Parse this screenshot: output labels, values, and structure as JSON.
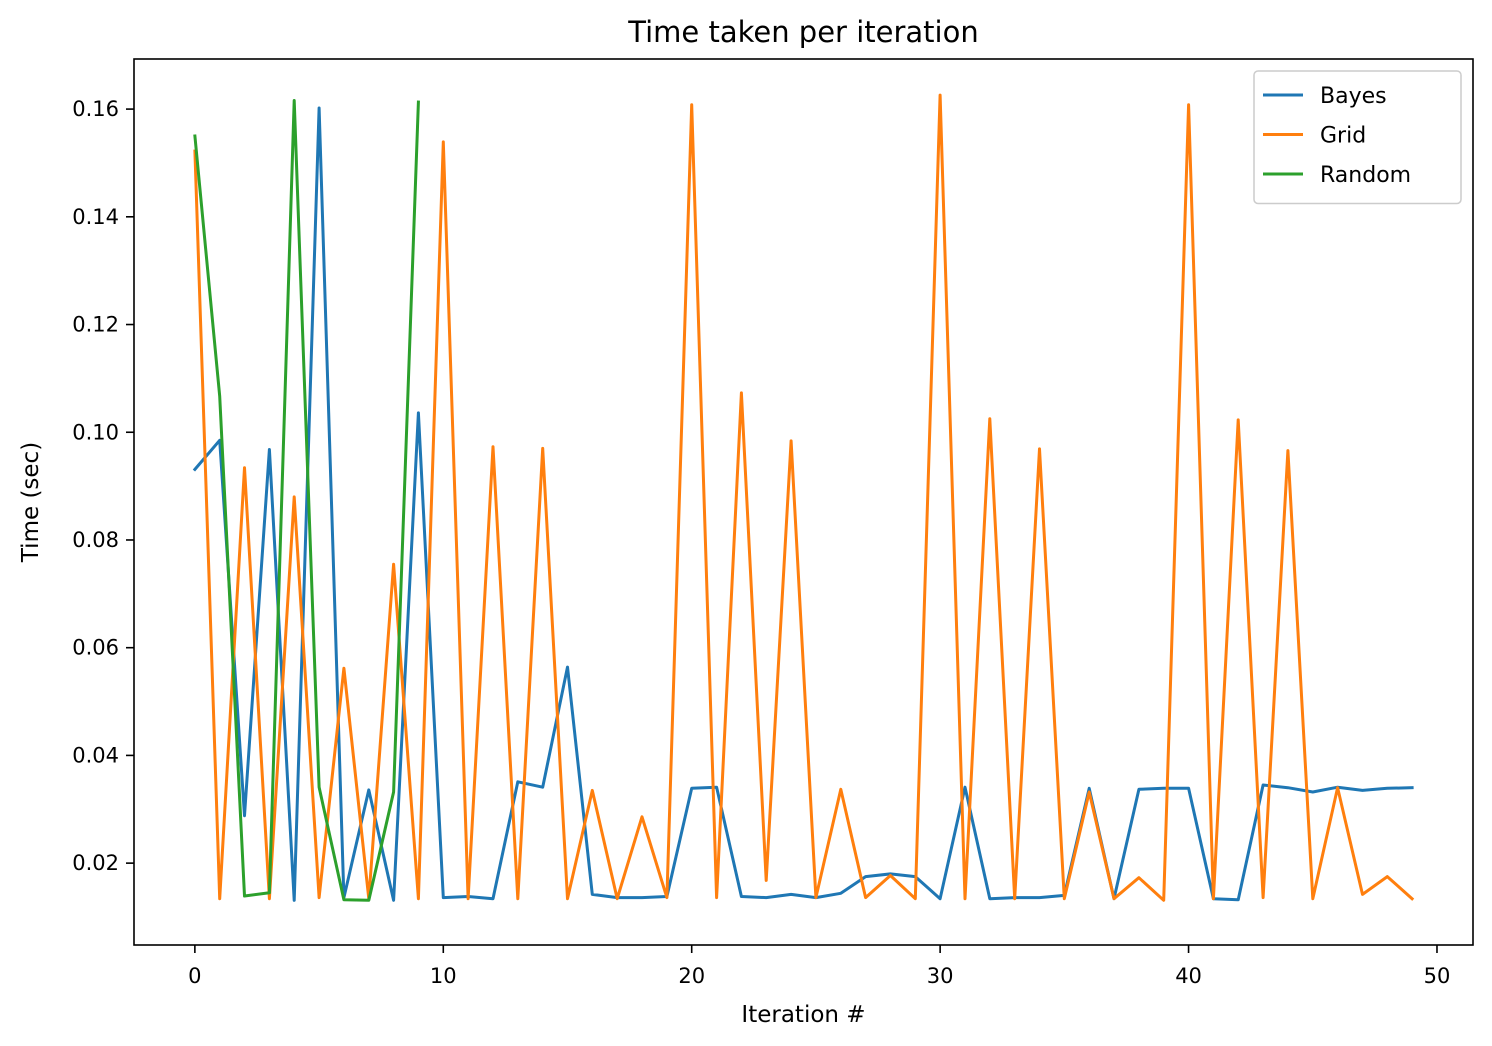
{
  "chart_data": {
    "type": "line",
    "title": "Time taken per iteration",
    "xlabel": "Iteration #",
    "ylabel": "Time (sec)",
    "xlim": [
      -2.45,
      51.45
    ],
    "ylim": [
      0.0048,
      0.1693
    ],
    "xticks": [
      0,
      10,
      20,
      30,
      40,
      50
    ],
    "yticks": [
      0.02,
      0.04,
      0.06,
      0.08,
      0.1,
      0.12,
      0.14,
      0.16
    ],
    "ytick_labels": [
      "0.02",
      "0.04",
      "0.06",
      "0.08",
      "0.10",
      "0.12",
      "0.14",
      "0.16"
    ],
    "grid": false,
    "legend_position": "top-right",
    "series": [
      {
        "name": "Bayes",
        "color": "#1f77b4",
        "x": [
          0,
          1,
          2,
          3,
          4,
          5,
          6,
          7,
          8,
          9,
          10,
          11,
          12,
          13,
          14,
          15,
          16,
          17,
          18,
          19,
          20,
          21,
          22,
          23,
          24,
          25,
          26,
          27,
          28,
          29,
          30,
          31,
          32,
          33,
          34,
          35,
          36,
          37,
          38,
          39,
          40,
          41,
          42,
          43,
          44,
          45,
          46,
          47,
          48,
          49
        ],
        "values": [
          0.0931,
          0.0985,
          0.0288,
          0.0968,
          0.0131,
          0.1602,
          0.0136,
          0.0336,
          0.0131,
          0.1036,
          0.0136,
          0.0138,
          0.0134,
          0.0351,
          0.0341,
          0.0564,
          0.0142,
          0.0136,
          0.0136,
          0.0138,
          0.0339,
          0.0341,
          0.0138,
          0.0136,
          0.0142,
          0.0136,
          0.0144,
          0.0175,
          0.018,
          0.0175,
          0.0134,
          0.0341,
          0.0134,
          0.0136,
          0.0136,
          0.014,
          0.0339,
          0.0134,
          0.0337,
          0.0339,
          0.0339,
          0.0134,
          0.0132,
          0.0345,
          0.034,
          0.0332,
          0.0341,
          0.0335,
          0.0339,
          0.034
        ]
      },
      {
        "name": "Grid",
        "color": "#ff7f0e",
        "x": [
          0,
          1,
          2,
          3,
          4,
          5,
          6,
          7,
          8,
          9,
          10,
          11,
          12,
          13,
          14,
          15,
          16,
          17,
          18,
          19,
          20,
          21,
          22,
          23,
          24,
          25,
          26,
          27,
          28,
          29,
          30,
          31,
          32,
          33,
          34,
          35,
          36,
          37,
          38,
          39,
          40,
          41,
          42,
          43,
          44,
          45,
          46,
          47,
          48,
          49
        ],
        "values": [
          0.1522,
          0.0134,
          0.0934,
          0.0134,
          0.088,
          0.0136,
          0.0562,
          0.0134,
          0.0755,
          0.0134,
          0.1539,
          0.0134,
          0.0973,
          0.0134,
          0.097,
          0.0134,
          0.0335,
          0.0134,
          0.0286,
          0.0136,
          0.1608,
          0.0136,
          0.1073,
          0.0168,
          0.0984,
          0.0136,
          0.0337,
          0.0136,
          0.0177,
          0.0134,
          0.1626,
          0.0134,
          0.1025,
          0.0134,
          0.0969,
          0.0134,
          0.0332,
          0.0134,
          0.0173,
          0.0131,
          0.1608,
          0.0134,
          0.1023,
          0.0136,
          0.0966,
          0.0134,
          0.034,
          0.0142,
          0.0175,
          0.0134
        ]
      },
      {
        "name": "Random",
        "color": "#2ca02c",
        "x": [
          0,
          1,
          2,
          3,
          4,
          5,
          6,
          7,
          8,
          9
        ],
        "values": [
          0.155,
          0.1067,
          0.0139,
          0.0145,
          0.1616,
          0.0341,
          0.0132,
          0.0131,
          0.0332,
          0.1613
        ]
      }
    ]
  }
}
